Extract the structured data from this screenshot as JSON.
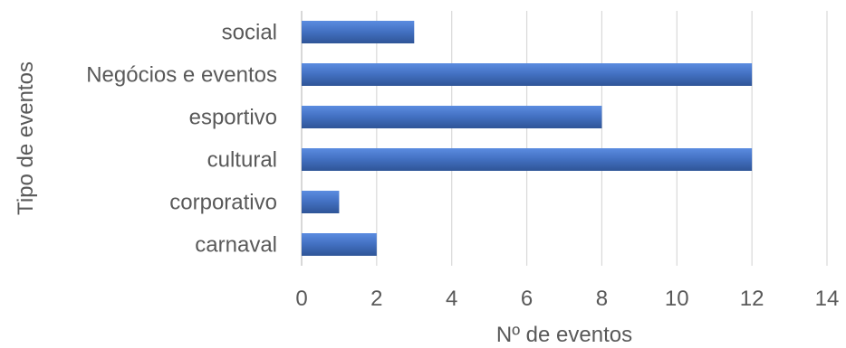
{
  "chart_data": {
    "type": "bar",
    "orientation": "horizontal",
    "categories": [
      "social",
      "Negócios e eventos",
      "esportivo",
      "cultural",
      "corporativo",
      "carnaval"
    ],
    "values": [
      3,
      12,
      8,
      12,
      1,
      2
    ],
    "xlabel": "Nº de eventos",
    "ylabel": "Tipo de eventos",
    "xlim": [
      0,
      14
    ],
    "xticks": [
      0,
      2,
      4,
      6,
      8,
      10,
      12,
      14
    ],
    "grid": "vertical",
    "bar_color": "#4472c4",
    "bar_color_light": "#5b8ce0",
    "bar_color_dark": "#2f5597",
    "legend": "none"
  }
}
